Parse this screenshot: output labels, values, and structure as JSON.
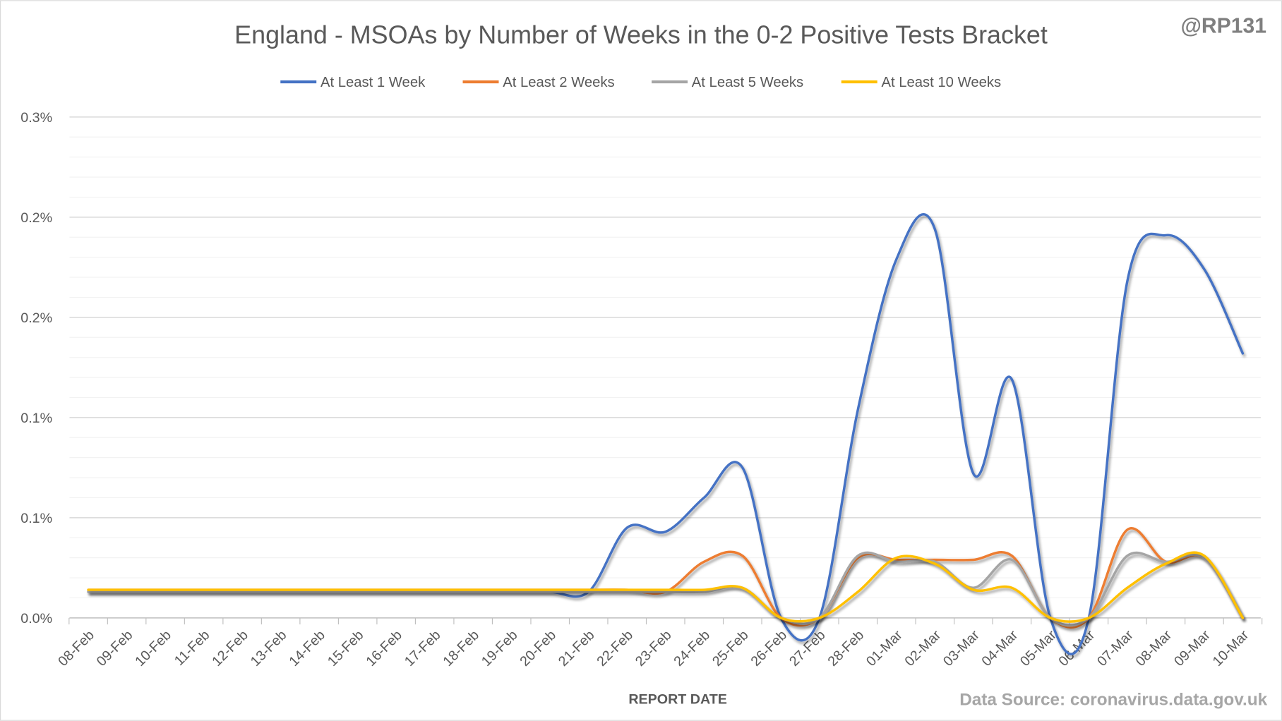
{
  "chart_data": {
    "type": "line",
    "title": "England - MSOAs by Number of Weeks in the 0-2 Positive Tests Bracket",
    "watermark": "@RP131",
    "source": "Data Source: coronavirus.data.gov.uk",
    "xlabel": "REPORT DATE",
    "ylabel": "",
    "ylim": [
      0,
      0.25
    ],
    "y_unit": "%",
    "y_ticks": [
      0,
      0.05,
      0.1,
      0.15,
      0.2,
      0.25
    ],
    "y_tick_labels": [
      "0.0%",
      "0.1%",
      "0.1%",
      "0.2%",
      "0.2%",
      "0.3%"
    ],
    "minor_grid_step": 0.01,
    "grid": true,
    "smooth": true,
    "legend_position": "top",
    "categories": [
      "08-Feb",
      "09-Feb",
      "10-Feb",
      "11-Feb",
      "12-Feb",
      "13-Feb",
      "14-Feb",
      "15-Feb",
      "16-Feb",
      "17-Feb",
      "18-Feb",
      "19-Feb",
      "20-Feb",
      "21-Feb",
      "22-Feb",
      "23-Feb",
      "24-Feb",
      "25-Feb",
      "26-Feb",
      "27-Feb",
      "28-Feb",
      "01-Mar",
      "02-Mar",
      "03-Mar",
      "04-Mar",
      "05-Mar",
      "06-Mar",
      "07-Mar",
      "08-Mar",
      "09-Mar",
      "10-Mar"
    ],
    "series": [
      {
        "name": "At Least 1 Week",
        "color": "#4472C4",
        "values": [
          0.013,
          0.013,
          0.013,
          0.013,
          0.013,
          0.013,
          0.013,
          0.013,
          0.013,
          0.013,
          0.013,
          0.013,
          0.013,
          0.013,
          0.045,
          0.043,
          0.06,
          0.075,
          0,
          0,
          0.104,
          0.179,
          0.194,
          0.072,
          0.119,
          0,
          0,
          0.168,
          0.191,
          0.174,
          0.132
        ]
      },
      {
        "name": "At Least 2 Weeks",
        "color": "#ED7D31",
        "values": [
          0.014,
          0.014,
          0.014,
          0.014,
          0.014,
          0.014,
          0.014,
          0.014,
          0.014,
          0.014,
          0.014,
          0.014,
          0.014,
          0.014,
          0.014,
          0.013,
          0.028,
          0.031,
          0,
          0,
          0.03,
          0.029,
          0.029,
          0.029,
          0.031,
          0,
          0,
          0.044,
          0.028,
          0.03,
          0
        ]
      },
      {
        "name": "At Least 5 Weeks",
        "color": "#A5A5A5",
        "values": [
          0.013,
          0.013,
          0.013,
          0.013,
          0.013,
          0.013,
          0.013,
          0.013,
          0.013,
          0.013,
          0.013,
          0.013,
          0.013,
          0.013,
          0.013,
          0.013,
          0.013,
          0.015,
          0,
          0,
          0.031,
          0.028,
          0.028,
          0.015,
          0.029,
          0,
          0,
          0.031,
          0.028,
          0.03,
          0
        ]
      },
      {
        "name": "At Least 10 Weeks",
        "color": "#FFC000",
        "values": [
          0.014,
          0.014,
          0.014,
          0.014,
          0.014,
          0.014,
          0.014,
          0.014,
          0.014,
          0.014,
          0.014,
          0.014,
          0.014,
          0.014,
          0.014,
          0.014,
          0.014,
          0.015,
          0,
          0,
          0.013,
          0.03,
          0.027,
          0.014,
          0.015,
          0,
          0,
          0.015,
          0.027,
          0.031,
          0
        ]
      }
    ]
  }
}
